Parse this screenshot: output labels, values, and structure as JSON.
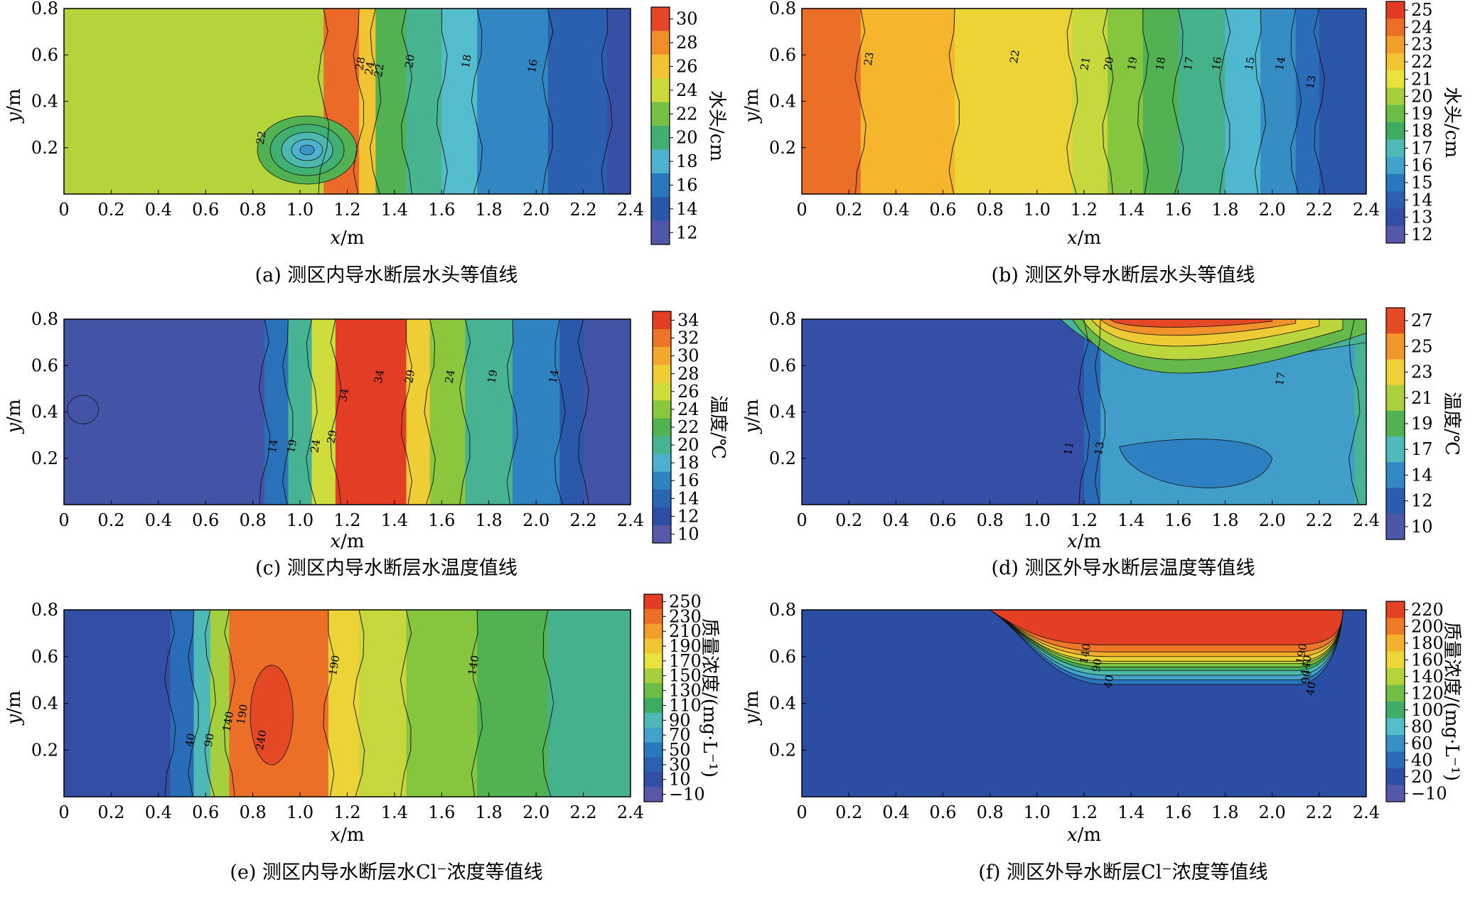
{
  "chart_data": [
    {
      "id": "a",
      "type": "contour",
      "caption": "(a) 测区内导水断层水头等值线",
      "xlabel_var": "x",
      "xlabel_unit": "/m",
      "ylabel_var": "y",
      "ylabel_unit": "/m",
      "xlim": [
        0,
        2.4
      ],
      "ylim": [
        0,
        0.8
      ],
      "xticks": [
        "0",
        "0.2",
        "0.4",
        "0.6",
        "0.8",
        "1.0",
        "1.2",
        "1.4",
        "1.6",
        "1.8",
        "2.0",
        "2.2",
        "2.4"
      ],
      "yticks": [
        "0.2",
        "0.4",
        "0.6",
        "0.8"
      ],
      "colorbar_label": "水头/cm",
      "colorbar_ticks": [
        "30",
        "28",
        "26",
        "24",
        "22",
        "20",
        "18",
        "16",
        "14",
        "12"
      ],
      "colorbar_range": [
        11,
        31
      ],
      "bands": [
        {
          "x_from": 0,
          "x_to": 1.1,
          "value": 23.5
        },
        {
          "x_from": 1.1,
          "x_to": 1.25,
          "value": 29
        },
        {
          "x_from": 1.25,
          "x_to": 1.32,
          "value": 26
        },
        {
          "x_from": 1.32,
          "x_to": 1.45,
          "value": 21
        },
        {
          "x_from": 1.45,
          "x_to": 1.6,
          "value": 19.5
        },
        {
          "x_from": 1.6,
          "x_to": 1.75,
          "value": 18.5
        },
        {
          "x_from": 1.75,
          "x_to": 2.05,
          "value": 16.5
        },
        {
          "x_from": 2.05,
          "x_to": 2.3,
          "value": 14.5
        },
        {
          "x_from": 2.3,
          "x_to": 2.4,
          "value": 13
        }
      ],
      "contour_labels": [
        {
          "x": 1.27,
          "y": 0.56,
          "text": "28"
        },
        {
          "x": 1.31,
          "y": 0.54,
          "text": "24"
        },
        {
          "x": 1.35,
          "y": 0.53,
          "text": "22"
        },
        {
          "x": 1.48,
          "y": 0.57,
          "text": "20"
        },
        {
          "x": 1.72,
          "y": 0.57,
          "text": "18"
        },
        {
          "x": 2.0,
          "y": 0.55,
          "text": "16"
        },
        {
          "x": 0.85,
          "y": 0.24,
          "text": "22"
        }
      ]
    },
    {
      "id": "b",
      "type": "contour",
      "caption": "(b) 测区外导水断层水头等值线",
      "xlabel_var": "x",
      "xlabel_unit": "/m",
      "ylabel_var": "y",
      "ylabel_unit": "/m",
      "xlim": [
        0,
        2.4
      ],
      "ylim": [
        0,
        0.8
      ],
      "xticks": [
        "0",
        "0.2",
        "0.4",
        "0.6",
        "0.8",
        "1.0",
        "1.2",
        "1.4",
        "1.6",
        "1.8",
        "2.0",
        "2.2",
        "2.4"
      ],
      "yticks": [
        "0.2",
        "0.4",
        "0.6",
        "0.8"
      ],
      "colorbar_label": "水头/cm",
      "colorbar_ticks": [
        "25",
        "24",
        "23",
        "22",
        "21",
        "20",
        "19",
        "18",
        "17",
        "16",
        "15",
        "14",
        "13",
        "12"
      ],
      "colorbar_range": [
        11.5,
        25.5
      ],
      "bands": [
        {
          "x_from": 0,
          "x_to": 0.25,
          "value": 24
        },
        {
          "x_from": 0.25,
          "x_to": 0.65,
          "value": 22.5
        },
        {
          "x_from": 0.65,
          "x_to": 1.15,
          "value": 21.5
        },
        {
          "x_from": 1.15,
          "x_to": 1.3,
          "value": 20.5
        },
        {
          "x_from": 1.3,
          "x_to": 1.45,
          "value": 19.5
        },
        {
          "x_from": 1.45,
          "x_to": 1.6,
          "value": 18.5
        },
        {
          "x_from": 1.6,
          "x_to": 1.8,
          "value": 17.5
        },
        {
          "x_from": 1.8,
          "x_to": 1.95,
          "value": 16.5
        },
        {
          "x_from": 1.95,
          "x_to": 2.1,
          "value": 15.5
        },
        {
          "x_from": 2.1,
          "x_to": 2.2,
          "value": 14.5
        },
        {
          "x_from": 2.2,
          "x_to": 2.4,
          "value": 13.5
        }
      ],
      "contour_labels": [
        {
          "x": 0.3,
          "y": 0.58,
          "text": "23"
        },
        {
          "x": 0.92,
          "y": 0.59,
          "text": "22"
        },
        {
          "x": 1.22,
          "y": 0.56,
          "text": "21"
        },
        {
          "x": 1.32,
          "y": 0.56,
          "text": "20"
        },
        {
          "x": 1.42,
          "y": 0.56,
          "text": "19"
        },
        {
          "x": 1.54,
          "y": 0.56,
          "text": "18"
        },
        {
          "x": 1.66,
          "y": 0.56,
          "text": "17"
        },
        {
          "x": 1.78,
          "y": 0.56,
          "text": "16"
        },
        {
          "x": 1.92,
          "y": 0.56,
          "text": "15"
        },
        {
          "x": 2.05,
          "y": 0.56,
          "text": "14"
        },
        {
          "x": 2.18,
          "y": 0.48,
          "text": "13"
        }
      ]
    },
    {
      "id": "c",
      "type": "contour",
      "caption": "(c) 测区内导水断层水温度值线",
      "xlabel_var": "x",
      "xlabel_unit": "/m",
      "ylabel_var": "y",
      "ylabel_unit": "/m",
      "xlim": [
        0,
        2.4
      ],
      "ylim": [
        0,
        0.8
      ],
      "xticks": [
        "0",
        "0.2",
        "0.4",
        "0.6",
        "0.8",
        "1.0",
        "1.2",
        "1.4",
        "1.6",
        "1.8",
        "2.0",
        "2.2",
        "2.4"
      ],
      "yticks": [
        "0.2",
        "0.4",
        "0.6",
        "0.8"
      ],
      "colorbar_label": "温度/℃",
      "colorbar_ticks": [
        "34",
        "32",
        "30",
        "28",
        "26",
        "24",
        "22",
        "20",
        "18",
        "16",
        "14",
        "12",
        "10"
      ],
      "colorbar_range": [
        9,
        35
      ],
      "bands": [
        {
          "x_from": 0,
          "x_to": 0.85,
          "value": 11
        },
        {
          "x_from": 0.85,
          "x_to": 0.95,
          "value": 15
        },
        {
          "x_from": 0.95,
          "x_to": 1.05,
          "value": 20
        },
        {
          "x_from": 1.05,
          "x_to": 1.15,
          "value": 26
        },
        {
          "x_from": 1.15,
          "x_to": 1.45,
          "value": 34
        },
        {
          "x_from": 1.45,
          "x_to": 1.55,
          "value": 28
        },
        {
          "x_from": 1.55,
          "x_to": 1.7,
          "value": 24
        },
        {
          "x_from": 1.7,
          "x_to": 1.9,
          "value": 20
        },
        {
          "x_from": 1.9,
          "x_to": 2.1,
          "value": 16
        },
        {
          "x_from": 2.1,
          "x_to": 2.2,
          "value": 13
        },
        {
          "x_from": 2.2,
          "x_to": 2.4,
          "value": 11
        }
      ],
      "contour_labels": [
        {
          "x": 0.9,
          "y": 0.25,
          "text": "14"
        },
        {
          "x": 0.98,
          "y": 0.25,
          "text": "19"
        },
        {
          "x": 1.08,
          "y": 0.25,
          "text": "24"
        },
        {
          "x": 1.15,
          "y": 0.29,
          "text": "29"
        },
        {
          "x": 1.2,
          "y": 0.47,
          "text": "34"
        },
        {
          "x": 1.35,
          "y": 0.55,
          "text": "34"
        },
        {
          "x": 1.48,
          "y": 0.55,
          "text": "29"
        },
        {
          "x": 1.65,
          "y": 0.55,
          "text": "24"
        },
        {
          "x": 1.83,
          "y": 0.55,
          "text": "19"
        },
        {
          "x": 2.09,
          "y": 0.55,
          "text": "14"
        }
      ]
    },
    {
      "id": "d",
      "type": "contour",
      "caption": "(d) 测区外导水断层温度等值线",
      "xlabel_var": "x",
      "xlabel_unit": "/m",
      "ylabel_var": "y",
      "ylabel_unit": "/m",
      "xlim": [
        0,
        2.4
      ],
      "ylim": [
        0,
        0.8
      ],
      "xticks": [
        "0",
        "0.2",
        "0.4",
        "0.6",
        "0.8",
        "1.0",
        "1.2",
        "1.4",
        "1.6",
        "1.8",
        "2.0",
        "2.2",
        "2.4"
      ],
      "yticks": [
        "0.2",
        "0.4",
        "0.6",
        "0.8"
      ],
      "colorbar_label": "温度/℃",
      "colorbar_ticks": [
        "27",
        "25",
        "23",
        "21",
        "19",
        "17",
        "14",
        "12",
        "10"
      ],
      "colorbar_range": [
        9,
        28
      ],
      "bands": [
        {
          "x_from": 0,
          "x_to": 1.2,
          "value": 11
        },
        {
          "x_from": 1.2,
          "x_to": 1.27,
          "value": 13
        },
        {
          "x_from": 1.27,
          "x_to": 2.35,
          "value": 15
        },
        {
          "x_from": 2.35,
          "x_to": 2.4,
          "value": 17
        }
      ],
      "contour_labels": [
        {
          "x": 1.15,
          "y": 0.24,
          "text": "11"
        },
        {
          "x": 1.28,
          "y": 0.24,
          "text": "13"
        },
        {
          "x": 2.05,
          "y": 0.54,
          "text": "17"
        }
      ]
    },
    {
      "id": "e",
      "type": "contour",
      "caption": "(e) 测区内导水断层水Cl⁻浓度等值线",
      "xlabel_var": "x",
      "xlabel_unit": "/m",
      "ylabel_var": "y",
      "ylabel_unit": "/m",
      "xlim": [
        0,
        2.4
      ],
      "ylim": [
        0,
        0.8
      ],
      "xticks": [
        "0",
        "0.2",
        "0.4",
        "0.6",
        "0.8",
        "1.0",
        "1.2",
        "1.4",
        "1.6",
        "1.8",
        "2.0",
        "2.2",
        "2.4"
      ],
      "yticks": [
        "0.2",
        "0.4",
        "0.6",
        "0.8"
      ],
      "colorbar_label": "质量浓度/(mg·L⁻¹)",
      "colorbar_ticks": [
        "250",
        "230",
        "210",
        "190",
        "170",
        "150",
        "130",
        "110",
        "90",
        "70",
        "50",
        "30",
        "10",
        "−10"
      ],
      "colorbar_range": [
        -20,
        260
      ],
      "bands": [
        {
          "x_from": 0,
          "x_to": 0.45,
          "value": 10
        },
        {
          "x_from": 0.45,
          "x_to": 0.55,
          "value": 40
        },
        {
          "x_from": 0.55,
          "x_to": 0.62,
          "value": 90
        },
        {
          "x_from": 0.62,
          "x_to": 0.7,
          "value": 150
        },
        {
          "x_from": 0.7,
          "x_to": 1.12,
          "value": 230
        },
        {
          "x_from": 1.12,
          "x_to": 1.25,
          "value": 180
        },
        {
          "x_from": 1.25,
          "x_to": 1.45,
          "value": 160
        },
        {
          "x_from": 1.45,
          "x_to": 1.75,
          "value": 140
        },
        {
          "x_from": 1.75,
          "x_to": 2.05,
          "value": 120
        },
        {
          "x_from": 2.05,
          "x_to": 2.4,
          "value": 100
        }
      ],
      "contour_labels": [
        {
          "x": 0.55,
          "y": 0.24,
          "text": "40"
        },
        {
          "x": 0.63,
          "y": 0.24,
          "text": "90"
        },
        {
          "x": 0.71,
          "y": 0.32,
          "text": "140"
        },
        {
          "x": 0.77,
          "y": 0.35,
          "text": "190"
        },
        {
          "x": 0.85,
          "y": 0.24,
          "text": "240"
        },
        {
          "x": 1.16,
          "y": 0.56,
          "text": "190"
        },
        {
          "x": 1.75,
          "y": 0.56,
          "text": "140"
        }
      ]
    },
    {
      "id": "f",
      "type": "contour",
      "caption": "(f) 测区外导水断层Cl⁻浓度等值线",
      "xlabel_var": "x",
      "xlabel_unit": "/m",
      "ylabel_var": "y",
      "ylabel_unit": "/m",
      "xlim": [
        0,
        2.4
      ],
      "ylim": [
        0,
        0.8
      ],
      "xticks": [
        "0",
        "0.2",
        "0.4",
        "0.6",
        "0.8",
        "1.0",
        "1.2",
        "1.4",
        "1.6",
        "1.8",
        "2.0",
        "2.2",
        "2.4"
      ],
      "yticks": [
        "0.2",
        "0.4",
        "0.6",
        "0.8"
      ],
      "colorbar_label": "质量浓度/(mg·L⁻¹)",
      "colorbar_ticks": [
        "220",
        "200",
        "180",
        "160",
        "140",
        "120",
        "100",
        "80",
        "60",
        "40",
        "20",
        "−10"
      ],
      "colorbar_range": [
        -20,
        230
      ],
      "bands": [
        {
          "x_from": 0,
          "x_to": 2.4,
          "value": 10
        }
      ],
      "contour_labels": [
        {
          "x": 1.22,
          "y": 0.61,
          "text": "140"
        },
        {
          "x": 1.27,
          "y": 0.56,
          "text": "90"
        },
        {
          "x": 1.32,
          "y": 0.49,
          "text": "40"
        },
        {
          "x": 2.14,
          "y": 0.61,
          "text": "190"
        },
        {
          "x": 2.16,
          "y": 0.56,
          "text": "140"
        },
        {
          "x": 2.16,
          "y": 0.51,
          "text": "90"
        },
        {
          "x": 2.18,
          "y": 0.46,
          "text": "40"
        }
      ]
    }
  ]
}
